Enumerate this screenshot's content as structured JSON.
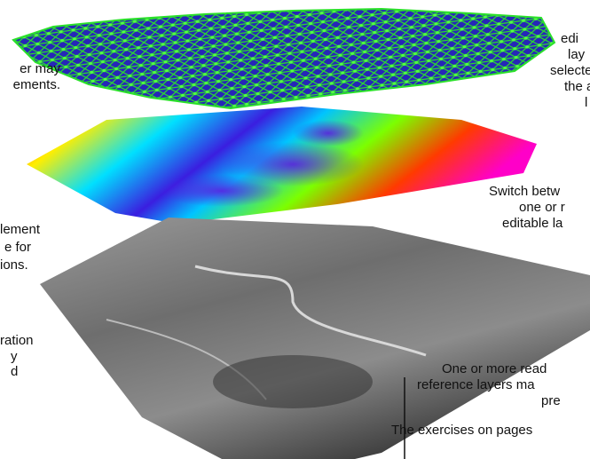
{
  "left_captions": [
    [
      "er may",
      "ements."
    ],
    [
      "lement",
      "e for",
      "ions."
    ],
    [
      "ration",
      "y",
      "d"
    ]
  ],
  "right_captions": [
    [
      "edi",
      "lay",
      "selecte",
      "the a",
      "l"
    ],
    [
      "Switch betw",
      "one or r",
      "editable la"
    ],
    [
      "One or more read",
      "reference layers ma",
      "pre"
    ]
  ],
  "footer": "The exercises on pages"
}
